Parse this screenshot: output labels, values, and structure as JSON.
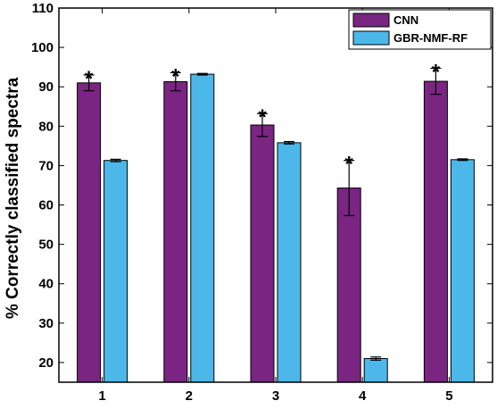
{
  "chart_data": {
    "type": "bar",
    "title": "",
    "xlabel": "",
    "ylabel": "% Correctly classified spectra",
    "categories": [
      "1",
      "2",
      "3",
      "4",
      "5"
    ],
    "ylim": [
      15,
      110
    ],
    "yticks": [
      20,
      30,
      40,
      50,
      60,
      70,
      80,
      90,
      100,
      110
    ],
    "legend_position": "top-right",
    "grid": false,
    "series": [
      {
        "name": "CNN",
        "color": "#7a2582",
        "values": [
          91.0,
          91.3,
          80.3,
          64.3,
          91.4
        ],
        "errors": [
          2.0,
          2.3,
          2.9,
          7.0,
          3.3
        ],
        "annotations": [
          "*",
          "*",
          "*",
          "*",
          "*"
        ]
      },
      {
        "name": "GBR-NMF-RF",
        "color": "#4cb8ea",
        "values": [
          71.3,
          93.2,
          75.8,
          21.0,
          71.5
        ],
        "errors": [
          0.3,
          0.2,
          0.3,
          0.4,
          0.2
        ],
        "annotations": [
          "",
          "",
          "",
          "",
          ""
        ]
      }
    ]
  }
}
